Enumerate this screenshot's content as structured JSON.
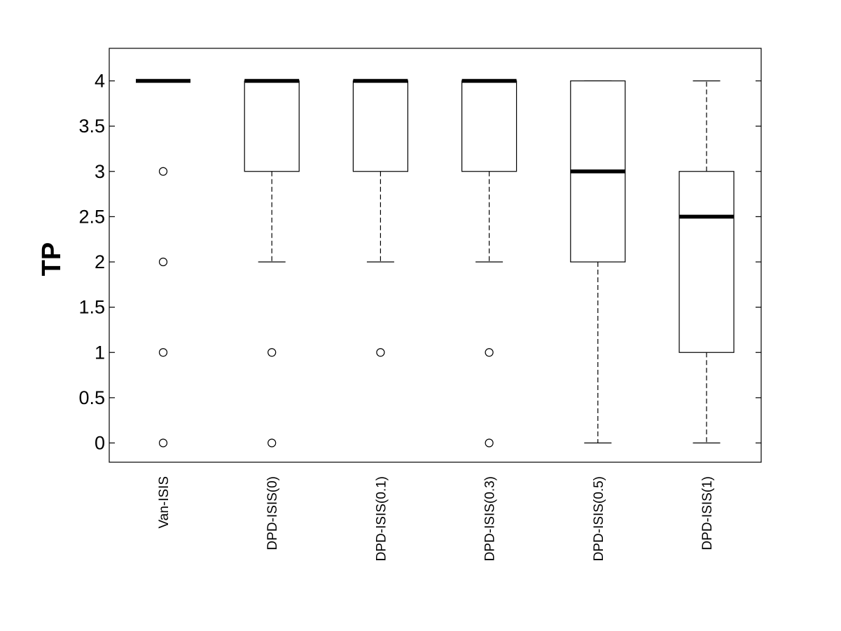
{
  "chart_data": {
    "type": "boxplot",
    "title": "",
    "xlabel": "",
    "ylabel": "TP",
    "ylim": [
      -0.2,
      4.35
    ],
    "yticks": [
      "0",
      "0.5",
      "1",
      "1.5",
      "2",
      "2.5",
      "3",
      "3.5",
      "4"
    ],
    "grid": false,
    "categories": [
      "Van-ISIS",
      "DPD-ISIS(0)",
      "DPD-ISIS(0.1)",
      "DPD-ISIS(0.3)",
      "DPD-ISIS(0.5)",
      "DPD-ISIS(1)"
    ],
    "boxes": [
      {
        "label": "Van-ISIS",
        "whisker_low": 4,
        "q1": 4,
        "median": 4,
        "q3": 4,
        "whisker_high": 4,
        "outliers": [
          3,
          2,
          1,
          0
        ]
      },
      {
        "label": "DPD-ISIS(0)",
        "whisker_low": 2,
        "q1": 3,
        "median": 4,
        "q3": 4,
        "whisker_high": 4,
        "outliers": [
          1,
          0
        ]
      },
      {
        "label": "DPD-ISIS(0.1)",
        "whisker_low": 2,
        "q1": 3,
        "median": 4,
        "q3": 4,
        "whisker_high": 4,
        "outliers": [
          1
        ]
      },
      {
        "label": "DPD-ISIS(0.3)",
        "whisker_low": 2,
        "q1": 3,
        "median": 4,
        "q3": 4,
        "whisker_high": 4,
        "outliers": [
          1,
          0
        ]
      },
      {
        "label": "DPD-ISIS(0.5)",
        "whisker_low": 0,
        "q1": 2,
        "median": 3,
        "q3": 4,
        "whisker_high": 4,
        "outliers": []
      },
      {
        "label": "DPD-ISIS(1)",
        "whisker_low": 0,
        "q1": 1,
        "median": 2.5,
        "q3": 3,
        "whisker_high": 4,
        "outliers": []
      }
    ]
  }
}
